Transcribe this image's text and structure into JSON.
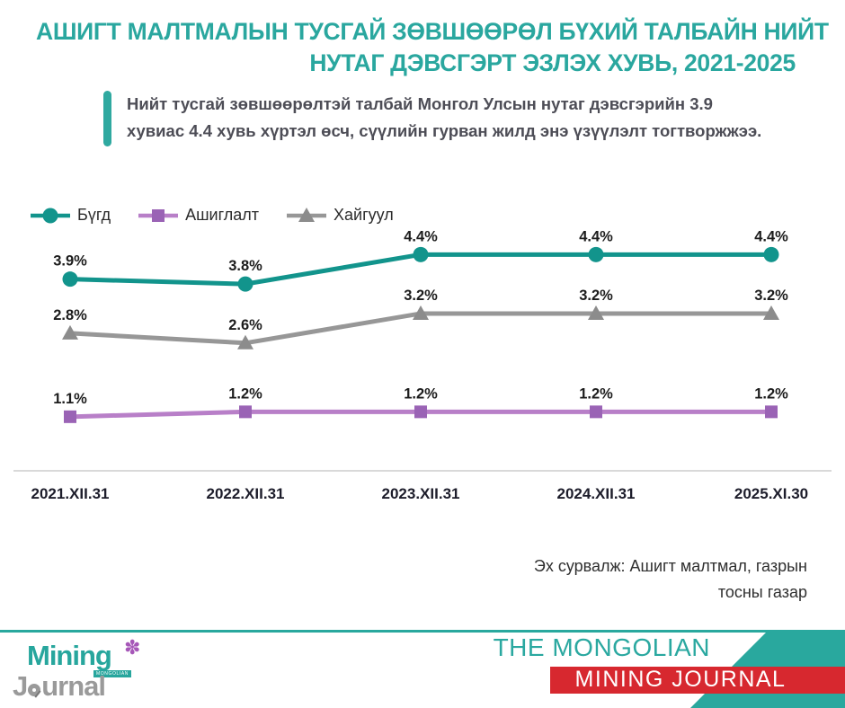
{
  "title": {
    "line1": "АШИГТ МАЛТМАЛЫН ТУСГАЙ ЗӨВШӨӨРӨЛ БҮХИЙ ТАЛБАЙН НИЙТ",
    "line2": "НУТАГ ДЭВСГЭРТ ЭЗЛЭХ ХУВЬ, 2021-2025"
  },
  "callout": {
    "line1": "Нийт тусгай зөвшөөрөлтэй талбай Монгол Улсын нутаг дэвсгэрийн 3.9",
    "line2": "хувиас 4.4 хувь хүртэл өсч, сүүлийн гурван жилд энэ үзүүлэлт тогтворжжээ."
  },
  "chart_data": {
    "type": "line",
    "title": "",
    "xlabel": "",
    "ylabel": "",
    "grid": false,
    "legend_position": "top-left",
    "ylim": [
      0,
      5.2
    ],
    "label_suffix": "%",
    "categories": [
      "2021.XII.31",
      "2022.XII.31",
      "2023.XII.31",
      "2024.XII.31",
      "2025.XI.30"
    ],
    "series": [
      {
        "name": "Бүгд",
        "marker": "circle",
        "line_color": "#12948c",
        "marker_color": "#12948c",
        "values": [
          3.9,
          3.8,
          4.4,
          4.4,
          4.4
        ]
      },
      {
        "name": "Ашиглалт",
        "marker": "square",
        "line_color": "#b87fc8",
        "marker_color": "#9a63b5",
        "values": [
          1.1,
          1.2,
          1.2,
          1.2,
          1.2
        ]
      },
      {
        "name": "Хайгуул",
        "marker": "triangle",
        "line_color": "#979797",
        "marker_color": "#8c8c8c",
        "values": [
          2.8,
          2.6,
          3.2,
          3.2,
          3.2
        ]
      }
    ],
    "axis_line_color": "#d9d9d9",
    "label_color": "#1c1c1c",
    "tick_color": "#1d1d2b"
  },
  "source": {
    "line1": "Эх сурвалж: Ашигт малтмал, газрын",
    "line2": "тосны газар"
  },
  "footer": {
    "tagline_top": "THE MONGOLIAN",
    "tagline_main": "MINING JOURNAL",
    "logo": {
      "word1": "Mining",
      "band_text": "MONGOLIAN",
      "word2_pre": "J",
      "word2_post": "urnal"
    }
  },
  "colors": {
    "accent_teal": "#29a89e",
    "title_teal": "#2aa79f",
    "banner_red": "#d7282f",
    "logo_gray": "#9a9a9a",
    "flower_purple": "#a657b8"
  }
}
